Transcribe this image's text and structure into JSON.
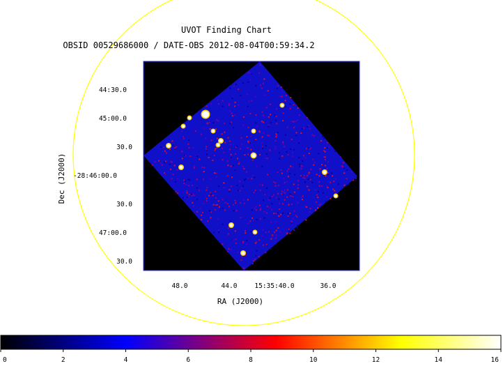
{
  "chart_data": {
    "type": "heatmap",
    "title": "UVOT Finding Chart",
    "subtitle": "OBSID 00529686000 / DATE-OBS 2012-08-04T00:59:34.2",
    "xlabel": "RA (J2000)",
    "ylabel": "Dec (J2000)",
    "x_ticks": [
      "48.0",
      "44.0",
      "15:35:40.0",
      "36.0"
    ],
    "y_ticks": [
      "44:30.0",
      "45:00.0",
      "30.0",
      "-28:46:00.0",
      "30.0",
      "47:00.0",
      "30.0"
    ],
    "colorbar": {
      "min": 0,
      "max": 16,
      "tick_labels": [
        "0",
        "2",
        "4",
        "6",
        "8",
        "10",
        "12",
        "14",
        "16"
      ],
      "colormap_stops": [
        "#000000",
        "#0000ff",
        "#ff0000",
        "#ffff00",
        "#ffffff"
      ]
    },
    "field_circle_color": "#ffff00",
    "image_frame_color": "#3030ff"
  }
}
